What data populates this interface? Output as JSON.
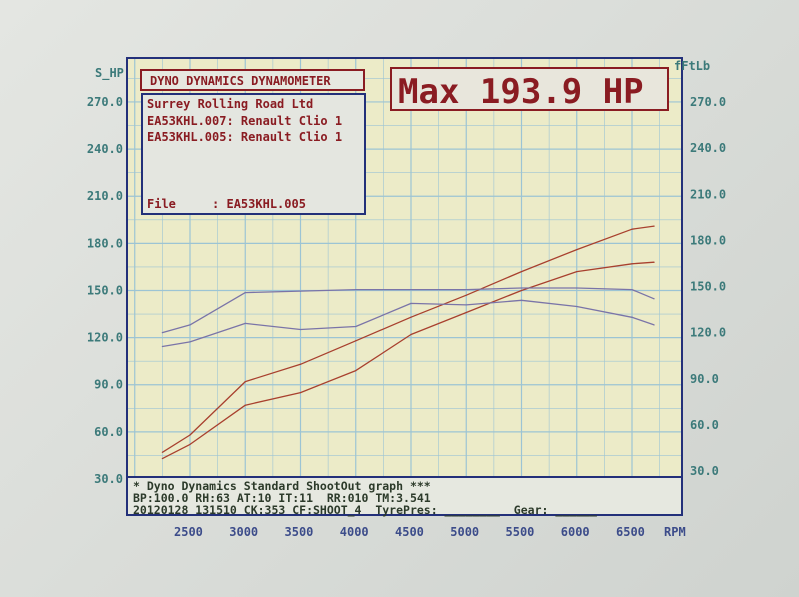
{
  "header": {
    "brand": "DYNO DYNAMICS DYNAMOMETER",
    "max_label": "Max 193.9 HP"
  },
  "info": {
    "company": "Surrey Rolling Road Ltd",
    "run1": "EA53KHL.007: Renault Clio 1",
    "run2": "EA53KHL.005: Renault Clio 1",
    "file": "File     : EA53KHL.005"
  },
  "footer": {
    "line1": "* Dyno Dynamics Standard ShootOut graph ***",
    "line2": "BP:100.0 RH:63 AT:10 IT:11  RR:010 TM:3.541",
    "line3": "20120128 131510 CK:353 CF:SHOOT_4  TyrePres: ________  Gear: ______"
  },
  "colors": {
    "power": "#a8402e",
    "torque": "#7a74a8",
    "grid": "#9cc4d4",
    "plot_bg": "#ecebc8",
    "frame": "#23307a"
  },
  "chart_data": {
    "type": "line",
    "xlabel": "RPM",
    "ylabel_left": "S_HP",
    "ylabel_right": "fFtLb",
    "xlim": [
      2000,
      6750
    ],
    "ylim_left": [
      30,
      300
    ],
    "ylim_right": [
      30,
      300
    ],
    "x_ticks": [
      "2500",
      "3000",
      "3500",
      "4000",
      "4500",
      "5000",
      "5500",
      "6000",
      "6500"
    ],
    "y_ticks_left": [
      "30.0",
      "60.0",
      "90.0",
      "120.0",
      "150.0",
      "180.0",
      "210.0",
      "240.0",
      "270.0"
    ],
    "y_ticks_right": [
      "30.0",
      "60.0",
      "90.0",
      "120.0",
      "150.0",
      "180.0",
      "210.0",
      "240.0",
      "270.0"
    ],
    "grid": true,
    "x": [
      2250,
      2500,
      3000,
      3500,
      4000,
      4500,
      5000,
      5500,
      6000,
      6500,
      6700
    ],
    "series": [
      {
        "axis": "left",
        "kind": "power",
        "values": [
          47,
          58,
          92,
          103,
          118,
          133,
          147,
          162,
          176,
          189,
          191
        ]
      },
      {
        "axis": "left",
        "kind": "power",
        "values": [
          43,
          52,
          77,
          85,
          99,
          122,
          136,
          150,
          162,
          167,
          168
        ]
      },
      {
        "axis": "right",
        "kind": "torque",
        "values": [
          120,
          125,
          146,
          147,
          148,
          148,
          148,
          149,
          149,
          148,
          142
        ]
      },
      {
        "axis": "right",
        "kind": "torque",
        "values": [
          111,
          114,
          126,
          122,
          124,
          139,
          138,
          141,
          137,
          130,
          125
        ]
      }
    ]
  }
}
